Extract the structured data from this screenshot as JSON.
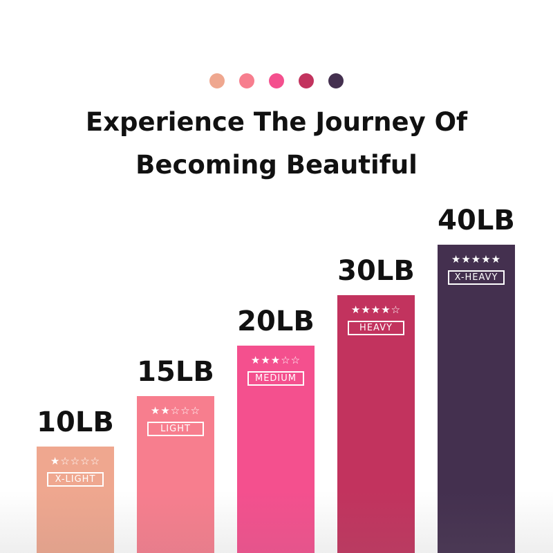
{
  "header": {
    "line1": "Experience The Journey Of",
    "line2": "Becoming Beautiful"
  },
  "dot_colors": [
    "#EFA78F",
    "#F77E8E",
    "#F4508E",
    "#C2335E",
    "#44304F"
  ],
  "chart_data": {
    "type": "bar",
    "categories": [
      "X-LIGHT",
      "LIGHT",
      "MEDIUM",
      "HEAVY",
      "X-HEAVY"
    ],
    "values": [
      "10LB",
      "15LB",
      "20LB",
      "30LB",
      "40LB"
    ],
    "stars": [
      1,
      2,
      3,
      4,
      5
    ],
    "stars_max": 5,
    "colors": [
      "#EFA78F",
      "#F77E8E",
      "#F4508E",
      "#C2335E",
      "#44304F"
    ]
  }
}
